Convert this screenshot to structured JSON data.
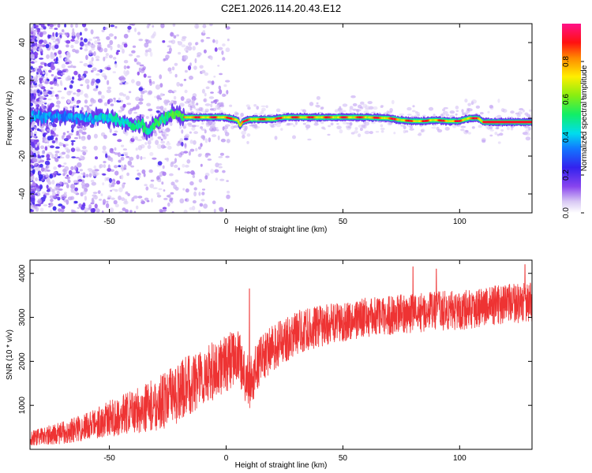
{
  "figure": {
    "title": "C2E1.2026.114.20.43.E12",
    "background": "#ffffff"
  },
  "chart_data": [
    {
      "type": "heatmap",
      "title": "",
      "xlabel": "Height of straight line (km)",
      "ylabel": "Frequency (Hz)",
      "xlim": [
        -84,
        131
      ],
      "ylim": [
        -50,
        50
      ],
      "x_ticks": [
        -50,
        0,
        50,
        100
      ],
      "y_ticks": [
        -40,
        -20,
        0,
        20,
        40
      ],
      "colorbar": {
        "label": "Normalized spectral amplitude",
        "range": [
          0,
          1
        ],
        "ticks": [
          0.0,
          0.2,
          0.4,
          0.6,
          0.8
        ],
        "colormap": "rainbow (white-violet-blue-cyan-green-yellow-red-magenta)"
      },
      "ridge_profile": {
        "x": [
          -84,
          -70,
          -60,
          -50,
          -42,
          -36,
          -33,
          -30,
          -26,
          -22,
          -18,
          -10,
          0,
          5,
          6,
          7,
          10,
          15,
          20,
          25,
          30,
          40,
          50,
          60,
          70,
          75,
          80,
          85,
          88,
          90,
          95,
          100,
          104,
          108,
          110,
          120,
          131
        ],
        "y": [
          0.5,
          1.5,
          0,
          0.5,
          -3,
          -4,
          -7,
          -2,
          0,
          3,
          0.5,
          0.5,
          0.5,
          -1,
          -4,
          -2,
          -0.5,
          -0.5,
          -0.5,
          0.5,
          0.5,
          0.5,
          0.5,
          0.5,
          0,
          -1,
          -1.5,
          -1.5,
          -1,
          -1,
          -1.5,
          -1.5,
          0,
          0,
          -2,
          -2,
          -2
        ]
      }
    },
    {
      "type": "line",
      "title": "",
      "xlabel": "Height of straight line (km)",
      "ylabel": "SNR (10 * v/v)",
      "xlim": [
        -84,
        131
      ],
      "ylim": [
        0,
        4300
      ],
      "x_ticks": [
        -50,
        0,
        50,
        100
      ],
      "y_ticks": [
        1000,
        2000,
        3000,
        4000
      ],
      "grid": false,
      "series": [
        {
          "color": "#ee3333",
          "trend": {
            "x": [
              -84,
              -70,
              -60,
              -50,
              -40,
              -30,
              -25,
              -20,
              -15,
              -10,
              -5,
              0,
              5,
              8,
              10,
              15,
              20,
              30,
              40,
              50,
              60,
              70,
              80,
              90,
              100,
              110,
              120,
              131
            ],
            "y": [
              250,
              380,
              520,
              700,
              850,
              1020,
              1150,
              1300,
              1500,
              1650,
              1800,
              1950,
              2150,
              1650,
              1500,
              2050,
              2300,
              2650,
              2800,
              2900,
              3000,
              3050,
              3100,
              3150,
              3150,
              3250,
              3300,
              3350
            ]
          },
          "noise_amplitude": {
            "x": [
              -84,
              -60,
              -40,
              -20,
              0,
              20,
              50,
              131
            ],
            "y": [
              160,
              320,
              500,
              700,
              650,
              520,
              450,
              450
            ]
          },
          "spikes": [
            {
              "x": 10,
              "y": 3650
            },
            {
              "x": 80,
              "y": 4150
            },
            {
              "x": 90,
              "y": 4100
            },
            {
              "x": 128,
              "y": 4200
            }
          ]
        }
      ]
    }
  ]
}
